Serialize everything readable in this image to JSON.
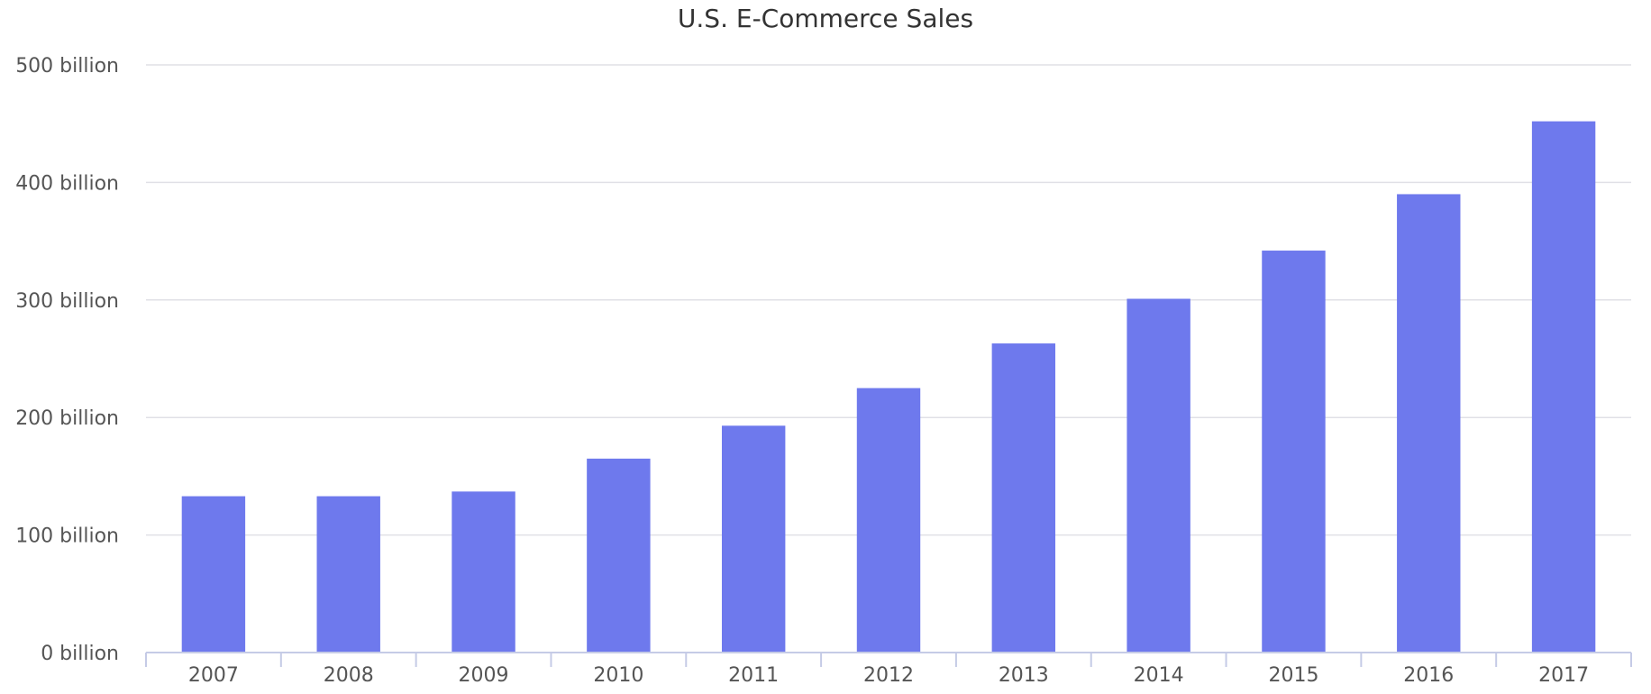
{
  "chart_data": {
    "type": "bar",
    "title": "U.S. E-Commerce Sales",
    "xlabel": "",
    "ylabel": "",
    "categories": [
      "2007",
      "2008",
      "2009",
      "2010",
      "2011",
      "2012",
      "2013",
      "2014",
      "2015",
      "2016",
      "2017"
    ],
    "values": [
      133,
      133,
      137,
      165,
      193,
      225,
      263,
      301,
      342,
      390,
      452
    ],
    "value_unit": "billion",
    "ylim": [
      0,
      500
    ],
    "yticks": [
      0,
      100,
      200,
      300,
      400,
      500
    ],
    "ytick_labels": [
      "0 billion",
      "100 billion",
      "200 billion",
      "300 billion",
      "400 billion",
      "500 billion"
    ],
    "grid": true,
    "legend": "none",
    "bar_color": "#6e79ed"
  }
}
